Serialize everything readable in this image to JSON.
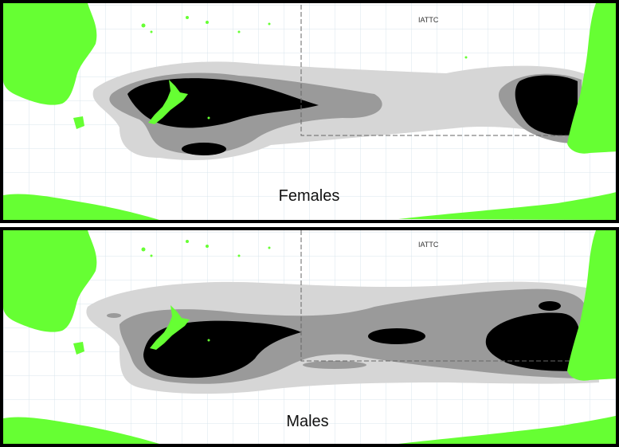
{
  "panels": [
    {
      "label": "Females",
      "region_label": "IATTC"
    },
    {
      "label": "Males",
      "region_label": "IATTC"
    }
  ],
  "colors": {
    "land": "#66ff33",
    "density_low": "#d6d6d6",
    "density_mid": "#9a9a9a",
    "density_high": "#000000",
    "grid": "#d9e6ec",
    "frame": "#000000",
    "boundary": "#666666"
  }
}
